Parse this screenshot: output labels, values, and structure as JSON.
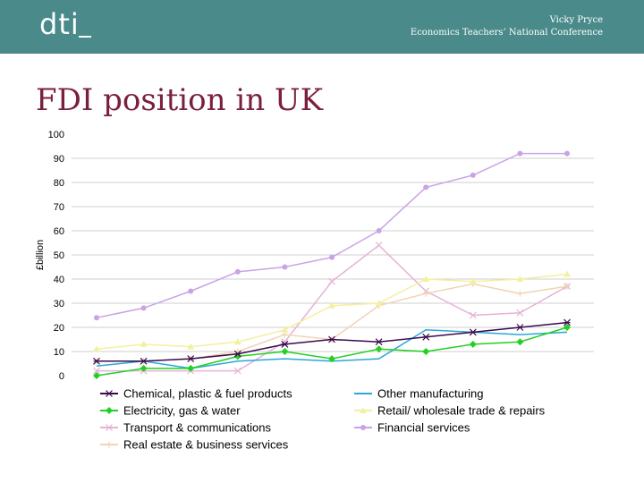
{
  "header": {
    "logo_text": "dti",
    "speaker_name": "Vicky Pryce",
    "event": "Economics Teachers’ National Conference",
    "background": "#4a8a8a"
  },
  "slide": {
    "title": "FDI position in UK",
    "title_color": "#7a1f3d"
  },
  "chart_data": {
    "type": "line",
    "title": "",
    "xlabel": "",
    "ylabel": "£billion",
    "ylim": [
      0,
      100
    ],
    "yticks": [
      0,
      10,
      20,
      30,
      40,
      50,
      60,
      70,
      80,
      90,
      100
    ],
    "grid": true,
    "legend_position": "bottom",
    "x": [
      1,
      2,
      3,
      4,
      5,
      6,
      7,
      8,
      9,
      10,
      11
    ],
    "series": [
      {
        "name": "Chemical, plastic & fuel products",
        "color": "#3b0a4f",
        "marker": "star",
        "values": [
          6,
          6,
          7,
          9,
          13,
          15,
          14,
          16,
          18,
          20,
          22
        ]
      },
      {
        "name": "Other manufacturing",
        "color": "#2aa7d9",
        "marker": "none",
        "values": [
          4,
          6,
          3,
          6,
          7,
          6,
          7,
          19,
          18,
          17,
          18
        ]
      },
      {
        "name": "Electricity, gas & water",
        "color": "#22d022",
        "marker": "diamond",
        "values": [
          0,
          3,
          3,
          8,
          10,
          7,
          11,
          10,
          13,
          14,
          20
        ]
      },
      {
        "name": "Retail/ wholesale trade & repairs",
        "color": "#f3f0a0",
        "marker": "triangle",
        "values": [
          11,
          13,
          12,
          14,
          19,
          29,
          30,
          40,
          39,
          40,
          42
        ]
      },
      {
        "name": "Transport & communications",
        "color": "#e6b2d6",
        "marker": "x",
        "values": [
          2,
          2,
          2,
          2,
          14,
          39,
          54,
          35,
          25,
          26,
          37
        ]
      },
      {
        "name": "Financial services",
        "color": "#c9a3e6",
        "marker": "circle",
        "values": [
          24,
          28,
          35,
          43,
          45,
          49,
          60,
          78,
          83,
          92,
          92
        ]
      },
      {
        "name": "Real estate & business services",
        "color": "#f0d4b2",
        "marker": "plus",
        "values": [
          6,
          6,
          7,
          10,
          17,
          15,
          29,
          34,
          38,
          34,
          37
        ]
      }
    ]
  }
}
